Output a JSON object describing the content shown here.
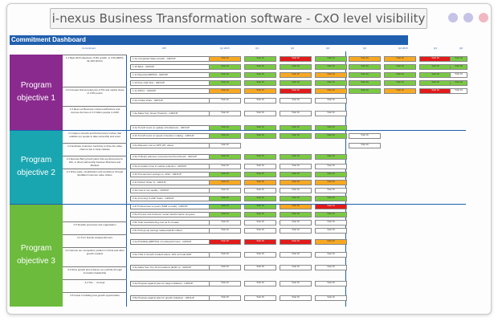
{
  "window": {
    "title": "i-nexus Business Transformation software - CxO level visibility",
    "controls": [
      "minimize-dot",
      "maximize-dot",
      "close-dot"
    ]
  },
  "dashboard": {
    "header": "Commitment Dashboard",
    "column_heads": [
      "Commitment",
      "KPI",
      "Q1 2015",
      "Q1",
      "Q2",
      "Q3",
      "Q4",
      "Q2 2015",
      "Q1",
      "Q2",
      "Q3",
      "Q4"
    ],
    "sections": [
      {
        "label": "Program objective 1"
      },
      {
        "label": "Program objective 2"
      },
      {
        "label": "Program objective 3"
      }
    ],
    "objectives": [
      {
        "text": "1.1 Beat 2015 objectives: 8.8% growth, to 10% EBITA, 32.19% ROCC"
      },
      {
        "text": "1.2 Increase brand preference of 5% and market share of 3.5% points"
      },
      {
        "text": "1.3 Meet our Business customers/Partners and improve the lives of 1.5 billion people in 2015"
      },
      {
        "text": "2.1 Adopt a Growth and Performance Culture that enables our people to take ownership and excel"
      },
      {
        "text": "2.2 Embrace Customer Centricity to drive the value chain to win in local markets"
      },
      {
        "text": "2.3 Execute BeQ growth plans that are Resourced to Win, in direct partnership between Business and Markets"
      },
      {
        "text": "2.4 Drive scale, simplification and excellence through End2End customer value chains"
      },
      {
        "text": "2.5 Simplify processes and organisation"
      },
      {
        "text": "3.1 Turn brands underperformers"
      },
      {
        "text": "3.2 Improve our competitive position in China and other growth markets"
      },
      {
        "text": "3.3 Drive growth and enhance our portfolio through innovation leadership"
      },
      {
        "text": "3.4 The ... concept"
      },
      {
        "text": "3.5 Invest in building new growth opportunities"
      }
    ],
    "kpis": [
      "1.1a Completed Sales Growth - GROUP",
      "1.1b Bank - GROUP",
      "1.1c Reported EBITDA - GROUP",
      "1.1d Free cash flow - GROUP",
      "1.1e ROCC - GROUP",
      "1.2a market share - GROUP",
      "1.3a Sales from Green Products - GROUP",
      "2.1a Turnoff count on update of behaviours - GROUP",
      "2.1b Turnoff count on speed of decision making - GROUP",
      "2.2a Relevant cust vs NPS VPI, above",
      "2.3a % BeQ's planned, resourced and benchmark - GROUP",
      "2.4a Innovation time to market reduction - GROUP",
      "2.4b Procurement savings vs. 2012 - GROUP",
      "2.4c Perfect Order % - GROUP",
      "2.4d Cost of non-quality - GROUP",
      "2.4e Incoming % ASP, Sales - GROUP",
      "2.4f % Revenues vs peers (SGB on total) - GROUP",
      "2.5a Process and business model transformation progress",
      "2.5b Total manufacturing cost as % of sales",
      "2.5c FGS group savings realised (EUR million)",
      "3.1a Profitable (EBITA%) of underperformers - GROUP",
      "3.2a CSG in Growth markets above 12% incl total GDP",
      "3.3a Sales from Top 10 Innovations (EUR m) - GROUP",
      "3.4a Progress against plan for target initiatives - GROUP",
      "3.5a Progress against plan for growth initiatives - GROUP"
    ],
    "cell_text": "Total: 00",
    "colors": {
      "green": "#7ac943",
      "amber": "#f7a823",
      "red": "#e21b1b",
      "header_blue": "#1f5fae",
      "objective1": "#8a2a8e",
      "objective2": "#1aa6b0",
      "objective3": "#6cbb3c"
    },
    "rag_rows": [
      [
        "a",
        "g",
        "r",
        "g",
        "a",
        "a",
        "r",
        "g"
      ],
      [
        "g",
        "g",
        "g",
        "g",
        "g",
        "g",
        "g",
        "g"
      ],
      [
        "g",
        "g",
        "a",
        "a",
        "g",
        "g",
        "g",
        "w"
      ],
      [
        "g",
        "g",
        "g",
        "g",
        "g",
        "g",
        "g",
        "g"
      ],
      [
        "a",
        "a",
        "r",
        "a",
        "g",
        "a",
        "r",
        "w"
      ],
      [
        "w",
        "w",
        "w",
        "w",
        "",
        "",
        "",
        ""
      ],
      [
        "w",
        "w",
        "w",
        "w",
        "",
        "",
        "",
        ""
      ],
      [
        "g",
        "g",
        "g",
        "g",
        "",
        "",
        "",
        ""
      ],
      [
        "g",
        "g",
        "g",
        "g",
        "w",
        "",
        "",
        ""
      ],
      [
        "w",
        "",
        "",
        "",
        "w",
        "",
        "",
        ""
      ],
      [
        "g",
        "g",
        "g",
        "g",
        "",
        "",
        "",
        ""
      ],
      [
        "w",
        "w",
        "w",
        "w",
        "",
        "",
        "",
        ""
      ],
      [
        "g",
        "g",
        "g",
        "g",
        "",
        "",
        "",
        ""
      ],
      [
        "a",
        "a",
        "a",
        "a",
        "",
        "",
        "",
        ""
      ],
      [
        "w",
        "w",
        "w",
        "w",
        "",
        "",
        "",
        ""
      ],
      [
        "g",
        "g",
        "g",
        "g",
        "",
        "",
        "",
        ""
      ],
      [
        "g",
        "g",
        "a",
        "r",
        "",
        "",
        "",
        ""
      ],
      [
        "g",
        "g",
        "g",
        "g",
        "",
        "",
        "",
        ""
      ],
      [
        "w",
        "w",
        "w",
        "w",
        "",
        "",
        "",
        ""
      ],
      [
        "w",
        "w",
        "w",
        "w",
        "",
        "",
        "",
        ""
      ],
      [
        "r",
        "r",
        "r",
        "a",
        "",
        "",
        "",
        ""
      ],
      [
        "w",
        "w",
        "w",
        "w",
        "",
        "",
        "",
        ""
      ],
      [
        "w",
        "w",
        "w",
        "w",
        "",
        "",
        "",
        ""
      ],
      [
        "w",
        "w",
        "w",
        "w",
        "",
        "",
        "",
        ""
      ],
      [
        "w",
        "w",
        "w",
        "w",
        "",
        "",
        "",
        ""
      ]
    ]
  }
}
